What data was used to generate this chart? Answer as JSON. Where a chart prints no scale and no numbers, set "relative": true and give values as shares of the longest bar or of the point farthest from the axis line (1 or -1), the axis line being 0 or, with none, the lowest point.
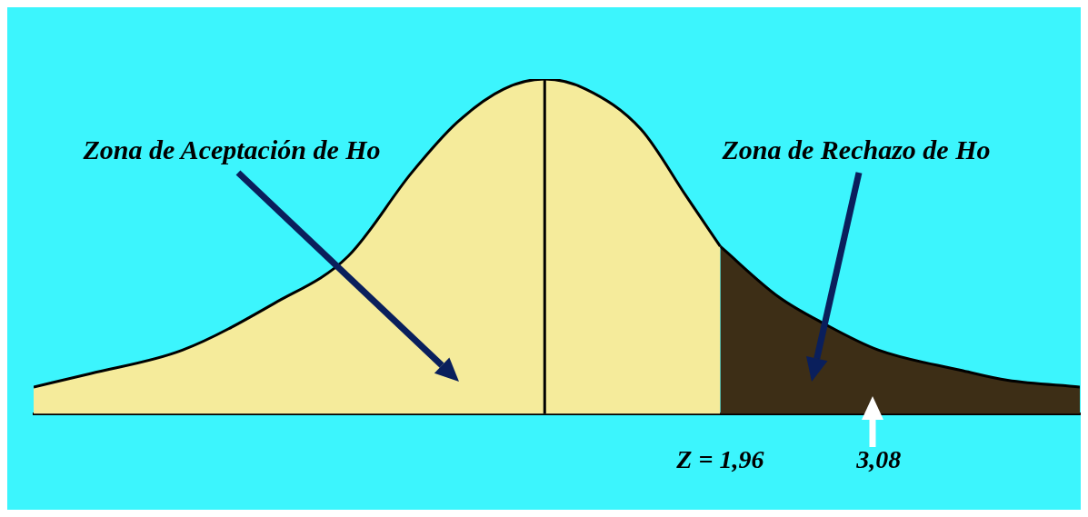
{
  "chart_data": {
    "type": "area",
    "relative": true,
    "xlim": [
      -2.89,
      4.5
    ],
    "xticks": [
      {
        "value": 1.96,
        "label": "Z = 1,96"
      },
      {
        "value": 3.08,
        "label": "3,08"
      }
    ],
    "series": [
      {
        "color": "#f5eb9b",
        "x": [
          -2.89,
          -2.49,
          -1.84,
          -1.19,
          -0.67,
          -0.22,
          0.1,
          0.43,
          0.72,
          1.01,
          1.4,
          1.72,
          1.96
        ],
        "values": [
          0.08,
          0.12,
          0.19,
          0.33,
          0.47,
          0.72,
          0.87,
          0.97,
          1,
          0.97,
          0.85,
          0.65,
          0.5
        ]
      },
      {
        "color": "#3d2e16",
        "x": [
          1.96,
          2.37,
          2.69,
          3.08,
          3.66,
          3.99,
          4.5
        ],
        "values": [
          0.5,
          0.35,
          0.27,
          0.19,
          0.13,
          0.1,
          0.08
        ]
      }
    ],
    "ref_lines": [
      {
        "axis": "x",
        "value": 0.72,
        "color": "#000000"
      }
    ],
    "annotations": [
      "Zona de Aceptación de Ho",
      "Zona de Rechazo de Ho"
    ],
    "legend": false,
    "grid": false
  }
}
